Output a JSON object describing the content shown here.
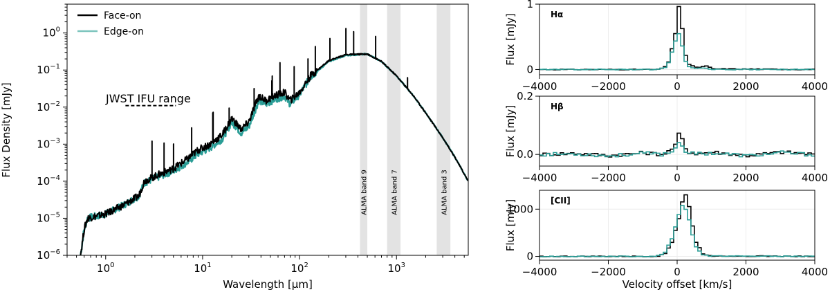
{
  "left": {
    "xlabel": "Wavelength [μm]",
    "ylabel": "Flux Density [mJy]",
    "xlim": [
      0.4,
      5500
    ],
    "ylim": [
      1e-06,
      6
    ],
    "xticks": [
      {
        "v": 1,
        "b": "10",
        "e": "0"
      },
      {
        "v": 10,
        "b": "10",
        "e": "1"
      },
      {
        "v": 100,
        "b": "10",
        "e": "2"
      },
      {
        "v": 1000,
        "b": "10",
        "e": "3"
      }
    ],
    "yticks": [
      {
        "v": 1e-06,
        "b": "10",
        "e": "−6"
      },
      {
        "v": 1e-05,
        "b": "10",
        "e": "−5"
      },
      {
        "v": 0.0001,
        "b": "10",
        "e": "−4"
      },
      {
        "v": 0.001,
        "b": "10",
        "e": "−3"
      },
      {
        "v": 0.01,
        "b": "10",
        "e": "−2"
      },
      {
        "v": 0.1,
        "b": "10",
        "e": "−1"
      },
      {
        "v": 1,
        "b": "10",
        "e": "0"
      }
    ],
    "legend": [
      {
        "name": "Face-on",
        "color": "#000000"
      },
      {
        "name": "Edge-on",
        "color": "#5fb8b0"
      }
    ],
    "bands": [
      {
        "label": "ALMA band 9",
        "lo": 420,
        "hi": 500
      },
      {
        "label": "ALMA band 7",
        "lo": 800,
        "hi": 1100
      },
      {
        "label": "ALMA band 3",
        "lo": 2600,
        "hi": 3600
      }
    ],
    "jwst": {
      "label": "JWST IFU range",
      "lo": 1.6,
      "hi": 5.3,
      "y": 0.011
    }
  },
  "panels": [
    {
      "label": "Hα",
      "ylabel": "Flux [mJy]",
      "ylim": [
        -0.08,
        1.0
      ],
      "yticks": [
        0,
        1
      ]
    },
    {
      "label": "Hβ",
      "ylabel": "Flux [mJy]",
      "ylim": [
        -0.04,
        0.2
      ],
      "yticks": [
        0.0,
        0.2
      ]
    },
    {
      "label": "[CII]",
      "ylabel": "Flux [mJy]",
      "ylim": [
        -80,
        1400
      ],
      "yticks": [
        0,
        1000
      ]
    }
  ],
  "panel_xticks": [
    "−4000",
    "−2000",
    "0",
    "2000",
    "4000"
  ],
  "panel_xtick_values": [
    -4000,
    -2000,
    0,
    2000,
    4000
  ],
  "panel_xlabel": "Velocity offset [km/s]",
  "chart_data": [
    {
      "type": "line",
      "xscale": "log",
      "yscale": "log",
      "xlabel": "Wavelength [μm]",
      "ylabel": "Flux Density [mJy]",
      "xlim": [
        0.4,
        5500
      ],
      "ylim": [
        1e-06,
        6
      ],
      "legend_placement": "top-left",
      "series": [
        {
          "name": "Face-on",
          "color": "#000000",
          "x": [
            0.55,
            0.6,
            0.65,
            0.75,
            1.0,
            1.5,
            2.2,
            2.5,
            3.5,
            5.0,
            7.0,
            9.0,
            12,
            16,
            20,
            25,
            30,
            38,
            45,
            55,
            70,
            80,
            100,
            130,
            200,
            300,
            500,
            700,
            1000,
            1500,
            2000,
            3000,
            4000,
            5500
          ],
          "y": [
            1e-06,
            5e-06,
            1e-05,
            1.1e-05,
            1.3e-05,
            2.2e-05,
            4e-05,
            0.0001,
            0.00015,
            0.00022,
            0.0004,
            0.0007,
            0.001,
            0.0018,
            0.005,
            0.0025,
            0.004,
            0.02,
            0.015,
            0.02,
            0.025,
            0.015,
            0.025,
            0.07,
            0.18,
            0.26,
            0.27,
            0.17,
            0.07,
            0.02,
            0.007,
            0.0015,
            0.00045,
            0.0001
          ]
        },
        {
          "name": "Edge-on",
          "color": "#2a9d96",
          "x": [
            0.55,
            0.6,
            0.65,
            0.75,
            1.0,
            1.5,
            2.2,
            2.5,
            3.5,
            5.0,
            7.0,
            9.0,
            12,
            16,
            20,
            25,
            30,
            38,
            45,
            55,
            70,
            80,
            100,
            130,
            200,
            300,
            500,
            700,
            1000,
            1500,
            2000,
            3000,
            4000,
            5500
          ],
          "y": [
            1e-06,
            5e-06,
            1e-05,
            1.1e-05,
            1.3e-05,
            2.2e-05,
            4e-05,
            9e-05,
            0.00013,
            0.00019,
            0.00033,
            0.00055,
            0.0008,
            0.0014,
            0.004,
            0.002,
            0.003,
            0.015,
            0.012,
            0.016,
            0.02,
            0.012,
            0.022,
            0.065,
            0.17,
            0.25,
            0.27,
            0.17,
            0.07,
            0.02,
            0.007,
            0.0015,
            0.00045,
            0.0001
          ]
        }
      ]
    },
    {
      "type": "line",
      "title": "Hα",
      "xlabel": "",
      "ylabel": "Flux [mJy]",
      "xlim": [
        -4000,
        4000
      ],
      "ylim": [
        -0.08,
        1.0
      ],
      "series": [
        {
          "name": "Face-on",
          "color": "#000000",
          "x": [
            -4000,
            -600,
            -400,
            -300,
            -200,
            -100,
            0,
            100,
            200,
            300,
            500,
            800,
            1000,
            4000
          ],
          "y": [
            0,
            0,
            0.04,
            0.12,
            0.32,
            0.55,
            0.96,
            0.62,
            0.22,
            0.08,
            0.03,
            0.05,
            0.01,
            0
          ]
        },
        {
          "name": "Edge-on",
          "color": "#2a9d96",
          "x": [
            -4000,
            -600,
            -400,
            -300,
            -200,
            -100,
            0,
            100,
            200,
            300,
            500,
            800,
            1000,
            4000
          ],
          "y": [
            0,
            0,
            0.03,
            0.1,
            0.27,
            0.44,
            0.55,
            0.36,
            0.12,
            0.04,
            0.02,
            0.02,
            0.0,
            0
          ]
        }
      ]
    },
    {
      "type": "line",
      "title": "Hβ",
      "xlabel": "",
      "ylabel": "Flux [mJy]",
      "xlim": [
        -4000,
        4000
      ],
      "ylim": [
        -0.04,
        0.2
      ],
      "series": [
        {
          "name": "Face-on",
          "color": "#000000",
          "x": [
            -4000,
            -3000,
            -2000,
            -1000,
            -500,
            -300,
            -200,
            -100,
            0,
            100,
            200,
            300,
            500,
            1000,
            2000,
            3000,
            4000
          ],
          "y": [
            0.0,
            0.004,
            -0.004,
            0.006,
            0.0,
            0.01,
            0.02,
            0.03,
            0.072,
            0.05,
            0.02,
            0.008,
            0.003,
            0.008,
            -0.004,
            0.008,
            0.0
          ]
        },
        {
          "name": "Edge-on",
          "color": "#2a9d96",
          "x": [
            -4000,
            -3000,
            -2000,
            -1000,
            -500,
            -300,
            -200,
            -100,
            0,
            100,
            200,
            300,
            500,
            1000,
            2000,
            3000,
            4000
          ],
          "y": [
            0.0,
            0.002,
            -0.005,
            0.004,
            0.0,
            0.006,
            0.012,
            0.02,
            0.045,
            0.03,
            0.012,
            0.004,
            0.002,
            0.005,
            -0.005,
            0.006,
            -0.002
          ]
        }
      ]
    },
    {
      "type": "line",
      "title": "[CII]",
      "xlabel": "Velocity offset [km/s]",
      "ylabel": "Flux [mJy]",
      "xlim": [
        -4000,
        4000
      ],
      "ylim": [
        -80,
        1400
      ],
      "series": [
        {
          "name": "Face-on",
          "color": "#000000",
          "x": [
            -4000,
            -800,
            -600,
            -400,
            -200,
            0,
            100,
            200,
            300,
            400,
            500,
            700,
            900,
            4000
          ],
          "y": [
            0,
            0,
            10,
            60,
            300,
            800,
            1150,
            1300,
            1050,
            650,
            300,
            60,
            10,
            0
          ]
        },
        {
          "name": "Edge-on",
          "color": "#2a9d96",
          "x": [
            -4000,
            -800,
            -600,
            -400,
            -200,
            0,
            100,
            200,
            300,
            400,
            500,
            700,
            900,
            4000
          ],
          "y": [
            0,
            0,
            15,
            80,
            380,
            880,
            1080,
            1000,
            780,
            450,
            200,
            40,
            8,
            0
          ]
        }
      ]
    }
  ]
}
